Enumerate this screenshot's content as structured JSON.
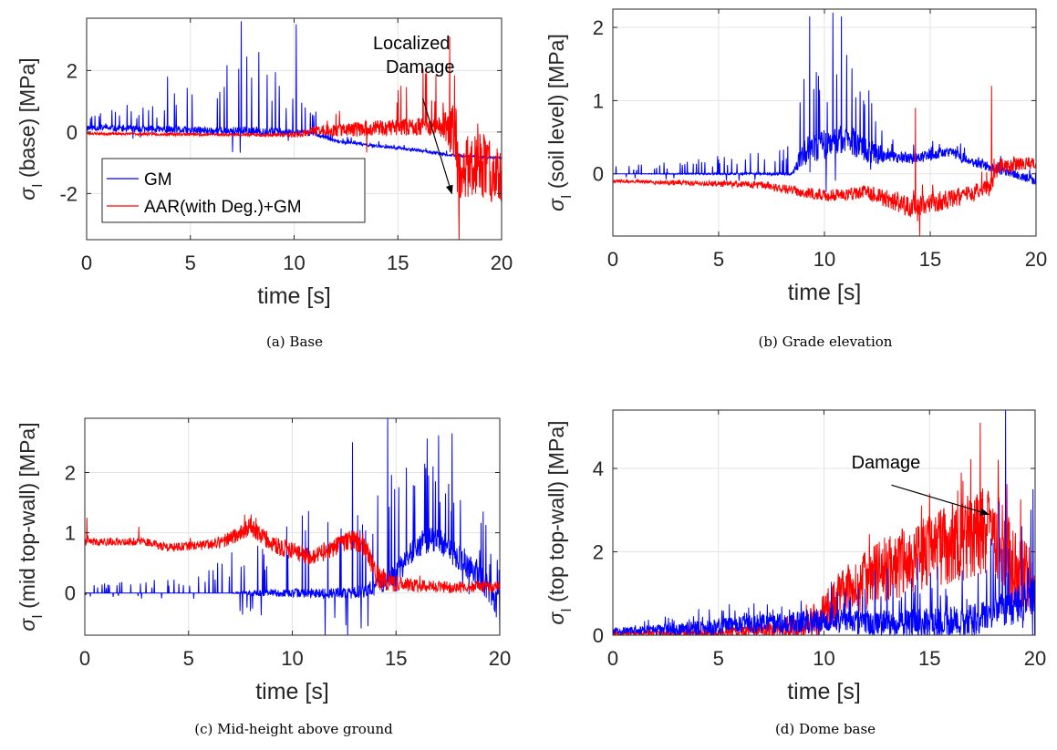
{
  "colors": {
    "GM": "#0000ff",
    "AAR": "#ff0000",
    "grid": "#e3e3e3",
    "axis": "#262626"
  },
  "chart_data": [
    {
      "id": "a",
      "type": "line",
      "caption": "(a) Base",
      "xlabel": "time [s]",
      "ylabel_base": "σ",
      "ylabel_sub": "I",
      "ylabel_rest": " (base) [MPa]",
      "xlim": [
        0,
        20
      ],
      "ylim": [
        -3.5,
        3.7
      ],
      "xticks": [
        0,
        5,
        10,
        15,
        20
      ],
      "yticks": [
        -2,
        0,
        2
      ],
      "xtick_labels": [
        "0",
        "5",
        "10",
        "15",
        "20"
      ],
      "ytick_labels": [
        "-2",
        "0",
        "2"
      ],
      "grid": true,
      "legend": {
        "position": "bottom-left",
        "entries": [
          "GM",
          "AAR(with Deg.)+GM"
        ]
      },
      "annotation": {
        "text_lines": [
          "Localized",
          "Damage"
        ],
        "text_at": [
          13.8,
          2.7
        ],
        "arrow_from": [
          16.2,
          1.1
        ],
        "arrow_to": [
          17.6,
          -2.0
        ]
      },
      "series": [
        {
          "name": "GM",
          "color_key": "GM",
          "baseline": [
            [
              0,
              0.15
            ],
            [
              5,
              0.05
            ],
            [
              10,
              0.0
            ],
            [
              11,
              -0.05
            ],
            [
              12,
              -0.3
            ],
            [
              14,
              -0.45
            ],
            [
              16,
              -0.6
            ],
            [
              17.5,
              -0.75
            ],
            [
              20,
              -0.85
            ]
          ],
          "noise": [
            [
              0,
              0.1
            ],
            [
              8,
              0.15
            ],
            [
              11,
              0.08
            ],
            [
              12,
              0.05
            ],
            [
              20,
              0.04
            ]
          ],
          "spike_rate": 1.3,
          "spike_amp": [
            [
              0,
              0.4
            ],
            [
              3,
              0.9
            ],
            [
              5,
              1.5
            ],
            [
              7,
              2.4
            ],
            [
              9,
              2.2
            ],
            [
              10.5,
              1.4
            ],
            [
              11.5,
              0.2
            ],
            [
              20,
              0.05
            ]
          ],
          "peaks": [
            [
              7.45,
              3.6
            ],
            [
              10.1,
              3.5
            ],
            [
              8.3,
              2.6
            ],
            [
              3.9,
              1.8
            ]
          ],
          "seed": 11
        },
        {
          "name": "AAR(with Deg.)+GM",
          "color_key": "AAR",
          "baseline": [
            [
              0,
              -0.05
            ],
            [
              10,
              -0.1
            ],
            [
              11,
              0.05
            ],
            [
              13,
              0.1
            ],
            [
              15,
              0.15
            ],
            [
              17,
              0.2
            ],
            [
              17.8,
              0.0
            ],
            [
              17.9,
              -1.5
            ],
            [
              18.5,
              -1.0
            ],
            [
              20,
              -1.3
            ]
          ],
          "noise": [
            [
              0,
              0.04
            ],
            [
              9,
              0.05
            ],
            [
              11,
              0.15
            ],
            [
              13,
              0.25
            ],
            [
              17,
              0.3
            ],
            [
              17.8,
              1.0
            ],
            [
              20,
              1.1
            ]
          ],
          "spike_rate": 0.8,
          "spike_amp": [
            [
              0,
              0.0
            ],
            [
              11,
              0.0
            ],
            [
              12,
              0.8
            ],
            [
              14,
              1.8
            ],
            [
              16,
              1.9
            ],
            [
              17.7,
              2.2
            ],
            [
              18,
              0.5
            ],
            [
              20,
              0.4
            ]
          ],
          "peaks": [
            [
              17.5,
              3.1
            ],
            [
              17.95,
              -3.5
            ]
          ],
          "seed": 23
        }
      ]
    },
    {
      "id": "b",
      "type": "line",
      "caption": "(b) Grade elevation",
      "xlabel": "time [s]",
      "ylabel_base": "σ",
      "ylabel_sub": "I",
      "ylabel_rest": " (soil level) [MPa]",
      "xlim": [
        0,
        20
      ],
      "ylim": [
        -0.85,
        2.25
      ],
      "xticks": [
        0,
        5,
        10,
        15,
        20
      ],
      "yticks": [
        0,
        1,
        2
      ],
      "xtick_labels": [
        "0",
        "5",
        "10",
        "15",
        "20"
      ],
      "ytick_labels": [
        "0",
        "1",
        "2"
      ],
      "grid": true,
      "series": [
        {
          "name": "GM",
          "color_key": "GM",
          "baseline": [
            [
              0,
              0.0
            ],
            [
              8.5,
              0.0
            ],
            [
              9,
              0.3
            ],
            [
              11,
              0.5
            ],
            [
              12,
              0.3
            ],
            [
              14,
              0.2
            ],
            [
              16,
              0.3
            ],
            [
              17,
              0.15
            ],
            [
              19,
              0.0
            ],
            [
              20,
              -0.1
            ]
          ],
          "noise": [
            [
              0,
              0.0
            ],
            [
              8.5,
              0.02
            ],
            [
              9,
              0.2
            ],
            [
              12,
              0.2
            ],
            [
              13,
              0.08
            ],
            [
              20,
              0.06
            ]
          ],
          "spike_rate": 1.6,
          "spike_amp": [
            [
              0,
              0.1
            ],
            [
              4,
              0.2
            ],
            [
              8.5,
              0.4
            ],
            [
              9,
              1.5
            ],
            [
              11,
              1.7
            ],
            [
              12,
              0.8
            ],
            [
              13,
              0.2
            ],
            [
              20,
              0.15
            ]
          ],
          "peaks": [
            [
              10.4,
              2.2
            ],
            [
              10.8,
              2.15
            ],
            [
              9.3,
              2.15
            ]
          ],
          "seed": 5
        },
        {
          "name": "AAR(with Deg.)+GM",
          "color_key": "AAR",
          "baseline": [
            [
              0,
              -0.1
            ],
            [
              7,
              -0.15
            ],
            [
              10,
              -0.3
            ],
            [
              12,
              -0.25
            ],
            [
              14,
              -0.45
            ],
            [
              16,
              -0.35
            ],
            [
              17.8,
              -0.2
            ],
            [
              18.2,
              0.1
            ],
            [
              20,
              0.15
            ]
          ],
          "noise": [
            [
              0,
              0.02
            ],
            [
              7,
              0.05
            ],
            [
              12,
              0.1
            ],
            [
              14,
              0.15
            ],
            [
              17.8,
              0.12
            ],
            [
              20,
              0.08
            ]
          ],
          "spike_rate": 0.5,
          "spike_amp": [
            [
              0,
              0.0
            ],
            [
              13,
              0.0
            ],
            [
              14,
              0.2
            ],
            [
              18,
              0.3
            ],
            [
              20,
              0.1
            ]
          ],
          "peaks": [
            [
              14.3,
              0.9
            ],
            [
              14.5,
              -0.85
            ],
            [
              17.9,
              1.2
            ]
          ],
          "seed": 31
        }
      ]
    },
    {
      "id": "c",
      "type": "line",
      "caption": "(c) Mid-height above ground",
      "xlabel": "time [s]",
      "ylabel_base": "σ",
      "ylabel_sub": "I",
      "ylabel_rest": " (mid top-wall) [MPa]",
      "xlim": [
        0,
        20
      ],
      "ylim": [
        -0.7,
        2.9
      ],
      "xticks": [
        0,
        5,
        10,
        15,
        20
      ],
      "yticks": [
        0,
        1,
        2
      ],
      "xtick_labels": [
        "0",
        "5",
        "10",
        "15",
        "20"
      ],
      "ytick_labels": [
        "0",
        "1",
        "2"
      ],
      "grid": true,
      "series": [
        {
          "name": "GM",
          "color_key": "GM",
          "baseline": [
            [
              0,
              0.0
            ],
            [
              13,
              0.0
            ],
            [
              14,
              0.1
            ],
            [
              15,
              0.3
            ],
            [
              16,
              0.8
            ],
            [
              17,
              0.9
            ],
            [
              18,
              0.6
            ],
            [
              19,
              0.3
            ],
            [
              20,
              -0.2
            ]
          ],
          "noise": [
            [
              0,
              0.0
            ],
            [
              7,
              0.0
            ],
            [
              8,
              0.05
            ],
            [
              13,
              0.1
            ],
            [
              15,
              0.2
            ],
            [
              20,
              0.25
            ]
          ],
          "spike_rate": 1.5,
          "spike_amp": [
            [
              0,
              0.15
            ],
            [
              5,
              0.25
            ],
            [
              8,
              0.9
            ],
            [
              11,
              1.4
            ],
            [
              13,
              1.9
            ],
            [
              15,
              1.8
            ],
            [
              18,
              1.6
            ],
            [
              20,
              0.8
            ]
          ],
          "peaks": [
            [
              14.6,
              2.9
            ],
            [
              17.7,
              2.65
            ],
            [
              12.9,
              2.5
            ],
            [
              20,
              -0.7
            ]
          ],
          "seed": 7
        },
        {
          "name": "AAR(with Deg.)+GM",
          "color_key": "AAR",
          "baseline": [
            [
              0,
              0.85
            ],
            [
              3,
              0.85
            ],
            [
              4,
              0.75
            ],
            [
              6,
              0.8
            ],
            [
              7,
              0.9
            ],
            [
              8,
              1.1
            ],
            [
              9,
              0.8
            ],
            [
              11,
              0.6
            ],
            [
              12,
              0.75
            ],
            [
              13,
              0.9
            ],
            [
              13.6,
              0.7
            ],
            [
              14,
              0.3
            ],
            [
              15,
              0.15
            ],
            [
              17,
              0.1
            ],
            [
              19,
              0.1
            ],
            [
              20,
              0.1
            ]
          ],
          "noise": [
            [
              0,
              0.06
            ],
            [
              6,
              0.08
            ],
            [
              8,
              0.15
            ],
            [
              12,
              0.15
            ],
            [
              14,
              0.2
            ],
            [
              16,
              0.1
            ],
            [
              20,
              0.1
            ]
          ],
          "spike_rate": 0.4,
          "spike_amp": [
            [
              0,
              0.1
            ],
            [
              20,
              0.1
            ]
          ],
          "peaks": [
            [
              0.1,
              1.25
            ],
            [
              2.6,
              1.1
            ],
            [
              7.7,
              1.3
            ],
            [
              13.4,
              1.0
            ]
          ],
          "seed": 41
        }
      ]
    },
    {
      "id": "d",
      "type": "line",
      "caption": "(d) Dome base",
      "xlabel": "time [s]",
      "ylabel_base": "σ",
      "ylabel_sub": "I",
      "ylabel_rest": " (top top-wall) [MPa]",
      "xlim": [
        0,
        20
      ],
      "ylim": [
        0,
        5.4
      ],
      "xticks": [
        0,
        5,
        10,
        15,
        20
      ],
      "yticks": [
        0,
        2,
        4
      ],
      "xtick_labels": [
        "0",
        "5",
        "10",
        "15",
        "20"
      ],
      "ytick_labels": [
        "0",
        "2",
        "4"
      ],
      "grid": true,
      "annotation": {
        "text_lines": [
          "Damage"
        ],
        "text_at": [
          11.3,
          4.0
        ],
        "arrow_from": [
          13.2,
          3.6
        ],
        "arrow_to": [
          17.8,
          2.9
        ]
      },
      "series": [
        {
          "name": "AAR(with Deg.)+GM",
          "color_key": "AAR",
          "baseline": [
            [
              0,
              0.05
            ],
            [
              5,
              0.05
            ],
            [
              9,
              0.2
            ],
            [
              10,
              0.5
            ],
            [
              11,
              1.0
            ],
            [
              13,
              1.6
            ],
            [
              15,
              2.0
            ],
            [
              17,
              2.4
            ],
            [
              18,
              2.6
            ],
            [
              19,
              1.6
            ],
            [
              20,
              1.2
            ]
          ],
          "noise": [
            [
              0,
              0.05
            ],
            [
              5,
              0.1
            ],
            [
              9,
              0.3
            ],
            [
              11,
              0.7
            ],
            [
              15,
              0.9
            ],
            [
              18,
              1.1
            ],
            [
              20,
              0.8
            ]
          ],
          "spike_rate": 0.8,
          "spike_amp": [
            [
              0,
              0.1
            ],
            [
              10,
              0.3
            ],
            [
              15,
              1.0
            ],
            [
              18,
              1.8
            ],
            [
              20,
              0.8
            ]
          ],
          "peaks": [
            [
              17.4,
              5.1
            ],
            [
              16.5,
              3.9
            ],
            [
              15.0,
              3.4
            ]
          ],
          "seed": 53
        },
        {
          "name": "GM",
          "color_key": "GM",
          "baseline": [
            [
              0,
              0.1
            ],
            [
              3,
              0.15
            ],
            [
              8,
              0.3
            ],
            [
              10,
              0.35
            ],
            [
              12,
              0.3
            ],
            [
              15,
              0.3
            ],
            [
              17,
              0.35
            ],
            [
              19,
              0.7
            ],
            [
              20,
              1.0
            ]
          ],
          "noise": [
            [
              0,
              0.06
            ],
            [
              3,
              0.15
            ],
            [
              8,
              0.25
            ],
            [
              12,
              0.3
            ],
            [
              18,
              0.4
            ],
            [
              20,
              0.5
            ]
          ],
          "spike_rate": 1.4,
          "spike_amp": [
            [
              0,
              0.1
            ],
            [
              3,
              0.3
            ],
            [
              8,
              0.7
            ],
            [
              12,
              1.0
            ],
            [
              16,
              1.4
            ],
            [
              19,
              2.0
            ],
            [
              20,
              2.2
            ]
          ],
          "peaks": [
            [
              18.6,
              5.4
            ],
            [
              19.9,
              3.5
            ],
            [
              18.3,
              3.2
            ]
          ],
          "seed": 67
        }
      ]
    }
  ]
}
